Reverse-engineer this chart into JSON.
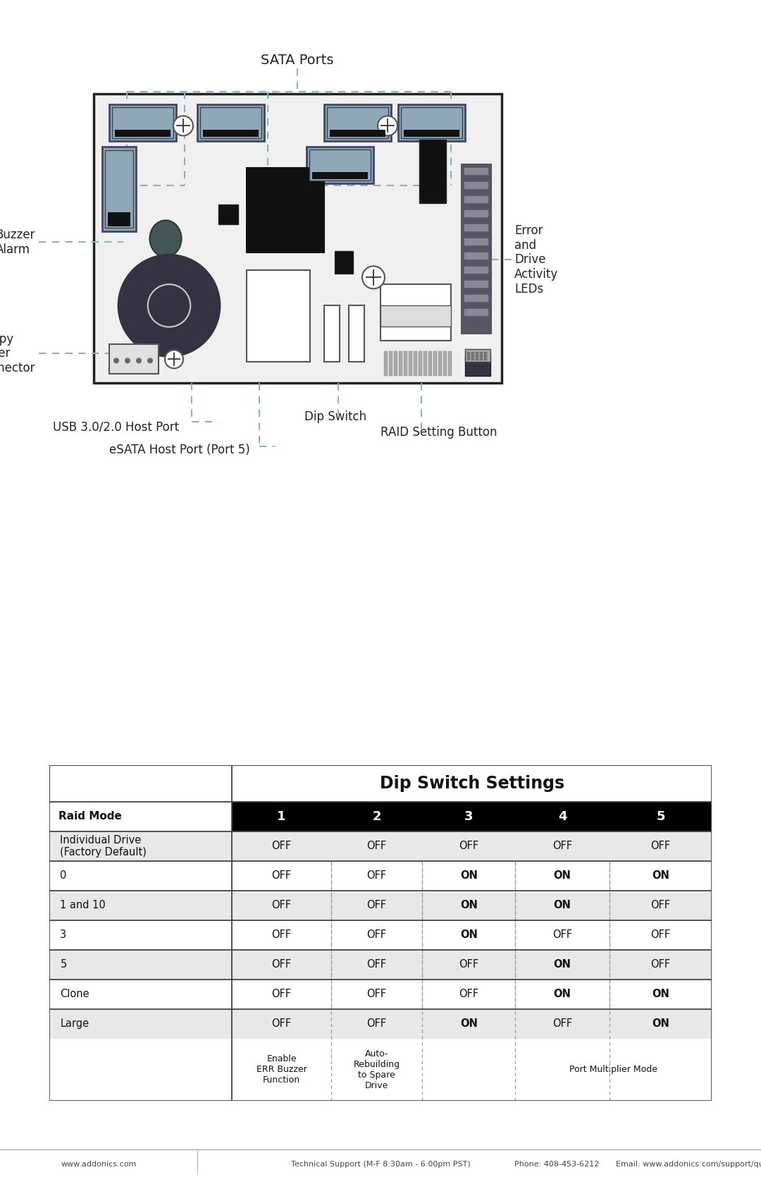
{
  "title": "Dip Switch Settings",
  "header_row": [
    "1",
    "2",
    "3",
    "4",
    "5"
  ],
  "raid_mode_label": "Raid Mode",
  "rows": [
    {
      "mode": "Individual Drive\n(Factory Default)",
      "values": [
        "OFF",
        "OFF",
        "OFF",
        "OFF",
        "OFF"
      ],
      "bold": [
        false,
        false,
        false,
        false,
        false
      ],
      "bg": "#e8e8e8"
    },
    {
      "mode": "0",
      "values": [
        "OFF",
        "OFF",
        "ON",
        "ON",
        "ON"
      ],
      "bold": [
        false,
        false,
        true,
        true,
        true
      ],
      "bg": "#ffffff"
    },
    {
      "mode": "1 and 10",
      "values": [
        "OFF",
        "OFF",
        "ON",
        "ON",
        "OFF"
      ],
      "bold": [
        false,
        false,
        true,
        true,
        false
      ],
      "bg": "#e8e8e8"
    },
    {
      "mode": "3",
      "values": [
        "OFF",
        "OFF",
        "ON",
        "OFF",
        "OFF"
      ],
      "bold": [
        false,
        false,
        true,
        false,
        false
      ],
      "bg": "#ffffff"
    },
    {
      "mode": "5",
      "values": [
        "OFF",
        "OFF",
        "OFF",
        "ON",
        "OFF"
      ],
      "bold": [
        false,
        false,
        false,
        true,
        false
      ],
      "bg": "#e8e8e8"
    },
    {
      "mode": "Clone",
      "values": [
        "OFF",
        "OFF",
        "OFF",
        "ON",
        "ON"
      ],
      "bold": [
        false,
        false,
        false,
        true,
        true
      ],
      "bg": "#ffffff"
    },
    {
      "mode": "Large",
      "values": [
        "OFF",
        "OFF",
        "ON",
        "OFF",
        "ON"
      ],
      "bold": [
        false,
        false,
        true,
        false,
        true
      ],
      "bg": "#e8e8e8"
    }
  ],
  "footer": {
    "col1": "Enable\nERR Buzzer\nFunction",
    "col2": "Auto-\nRebuilding\nto Spare\nDrive",
    "col45": "Port Multiplier Mode"
  },
  "sata_ports_label": "SATA Ports",
  "usb_label": "USB 3.0/2.0 Host Port",
  "esata_label": "eSATA Host Port (Port 5)",
  "dip_switch_label": "Dip Switch",
  "raid_setting_label": "RAID Setting Button",
  "buzzer_label": "Buzzer\nAlarm",
  "floppy_label": "Floppy\nPower\nConnector",
  "error_label": "Error\nand\nDrive\nActivity\nLEDs",
  "bg_color": "#ffffff",
  "header_bg": "#000000",
  "header_fg": "#ffffff",
  "dashed_line_color": "#8ab0c0",
  "board_fill": "#f0f0f0",
  "board_border": "#222222",
  "sata_fill": "#8fa8b8",
  "sata_border": "#444466",
  "dark_fill": "#333344",
  "black_fill": "#111111"
}
